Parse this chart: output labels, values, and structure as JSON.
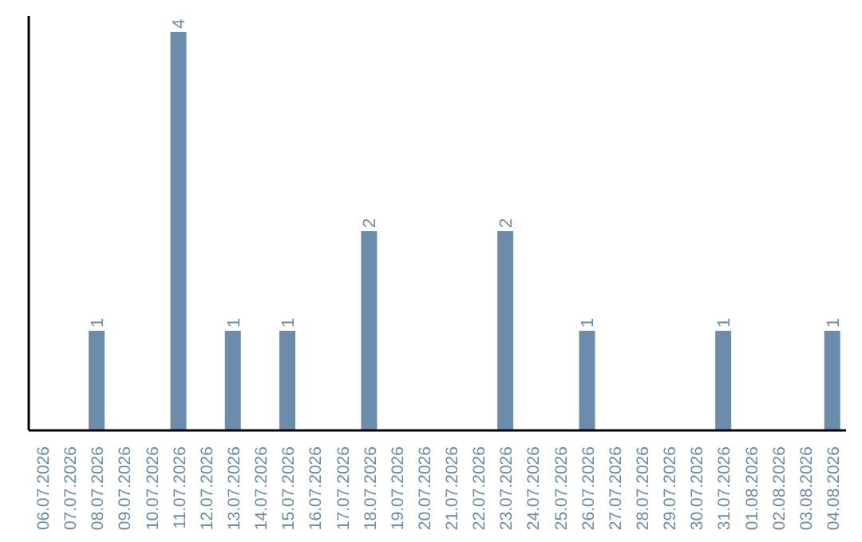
{
  "chart_data": {
    "type": "bar",
    "categories": [
      "06.07.2026",
      "07.07.2026",
      "08.07.2026",
      "09.07.2026",
      "10.07.2026",
      "11.07.2026",
      "12.07.2026",
      "13.07.2026",
      "14.07.2026",
      "15.07.2026",
      "16.07.2026",
      "17.07.2026",
      "18.07.2026",
      "19.07.2026",
      "20.07.2026",
      "21.07.2026",
      "22.07.2026",
      "23.07.2026",
      "24.07.2026",
      "25.07.2026",
      "26.07.2026",
      "27.07.2026",
      "28.07.2026",
      "29.07.2026",
      "30.07.2026",
      "31.07.2026",
      "01.08.2026",
      "02.08.2026",
      "03.08.2026",
      "04.08.2026"
    ],
    "values": [
      0,
      0,
      1,
      0,
      0,
      4,
      0,
      1,
      0,
      1,
      0,
      0,
      2,
      0,
      0,
      0,
      0,
      2,
      0,
      0,
      1,
      0,
      0,
      0,
      0,
      1,
      0,
      0,
      0,
      1
    ],
    "value_labels": [
      null,
      null,
      "1",
      null,
      null,
      "4",
      null,
      "1",
      null,
      "1",
      null,
      null,
      "2",
      null,
      null,
      null,
      null,
      "2",
      null,
      null,
      "1",
      null,
      null,
      null,
      null,
      "1",
      null,
      null,
      null,
      "1"
    ],
    "color": "#6b8cab",
    "tick_labels": "x"
  }
}
